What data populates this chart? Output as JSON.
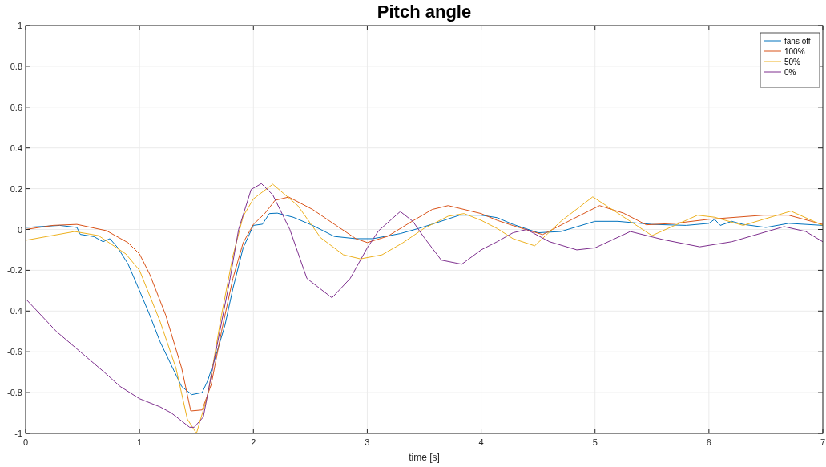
{
  "chart_data": {
    "type": "line",
    "title": "Pitch angle",
    "xlabel": "time [s]",
    "xlim": [
      0,
      7
    ],
    "xticks": [
      0,
      1,
      2,
      3,
      4,
      5,
      6,
      7
    ],
    "ylim": [
      -1,
      1
    ],
    "yticks": [
      -1,
      -0.8,
      -0.6,
      -0.4,
      -0.2,
      0,
      0.2,
      0.4,
      0.6,
      0.8,
      1
    ],
    "grid": true,
    "legend": "top right",
    "marker": "none",
    "line_style": "solid",
    "series": [
      {
        "name": "fans off",
        "color": "#0072bd",
        "x": [
          0,
          0.3,
          0.45,
          0.48,
          0.6,
          0.68,
          0.74,
          0.81,
          0.9,
          1.0,
          1.09,
          1.18,
          1.3,
          1.37,
          1.46,
          1.55,
          1.6,
          1.67,
          1.75,
          1.82,
          1.91,
          2.0,
          2.08,
          2.14,
          2.21,
          2.35,
          2.52,
          2.71,
          2.9,
          3.05,
          3.29,
          3.45,
          3.57,
          3.81,
          4.0,
          4.14,
          4.28,
          4.5,
          4.7,
          5.0,
          5.2,
          5.5,
          5.8,
          6.0,
          6.05,
          6.1,
          6.2,
          6.3,
          6.5,
          6.7,
          7.0
        ],
        "values": [
          0.01,
          0.02,
          0.01,
          -0.024,
          -0.035,
          -0.06,
          -0.045,
          -0.09,
          -0.17,
          -0.3,
          -0.42,
          -0.55,
          -0.69,
          -0.77,
          -0.81,
          -0.8,
          -0.74,
          -0.62,
          -0.47,
          -0.29,
          -0.09,
          0.02,
          0.026,
          0.078,
          0.08,
          0.06,
          0.02,
          -0.034,
          -0.045,
          -0.045,
          -0.02,
          0.005,
          0.026,
          0.07,
          0.07,
          0.058,
          0.025,
          -0.016,
          -0.01,
          0.04,
          0.04,
          0.025,
          0.02,
          0.03,
          0.05,
          0.02,
          0.04,
          0.025,
          0.01,
          0.03,
          0.02
        ]
      },
      {
        "name": "100%",
        "color": "#d95319",
        "x": [
          0,
          0.24,
          0.45,
          0.71,
          0.9,
          1.0,
          1.09,
          1.23,
          1.37,
          1.45,
          1.55,
          1.63,
          1.72,
          1.82,
          1.91,
          2.0,
          2.1,
          2.19,
          2.31,
          2.52,
          2.71,
          2.9,
          3.0,
          3.18,
          3.39,
          3.57,
          3.71,
          4.0,
          4.14,
          4.28,
          4.54,
          4.8,
          5.04,
          5.25,
          5.45,
          5.7,
          6.0,
          6.48,
          6.7,
          7.0
        ],
        "values": [
          0,
          0.02,
          0.025,
          -0.006,
          -0.065,
          -0.12,
          -0.22,
          -0.42,
          -0.68,
          -0.89,
          -0.885,
          -0.76,
          -0.5,
          -0.24,
          -0.065,
          0.025,
          0.078,
          0.143,
          0.159,
          0.098,
          0.026,
          -0.045,
          -0.064,
          -0.033,
          0.039,
          0.098,
          0.117,
          0.078,
          0.045,
          0.019,
          -0.025,
          0.05,
          0.117,
          0.08,
          0.023,
          0.03,
          0.05,
          0.07,
          0.07,
          0.025
        ]
      },
      {
        "name": "50%",
        "color": "#edb120",
        "x": [
          0,
          0.23,
          0.43,
          0.64,
          0.88,
          1.0,
          1.18,
          1.32,
          1.42,
          1.5,
          1.6,
          1.72,
          1.82,
          1.91,
          2.0,
          2.17,
          2.39,
          2.59,
          2.79,
          2.94,
          3.13,
          3.31,
          3.5,
          3.71,
          3.85,
          4.0,
          4.14,
          4.28,
          4.47,
          4.7,
          4.98,
          5.2,
          5.5,
          5.9,
          6.05,
          6.3,
          6.72,
          7.0
        ],
        "values": [
          -0.053,
          -0.03,
          -0.01,
          -0.03,
          -0.12,
          -0.2,
          -0.45,
          -0.68,
          -0.93,
          -1,
          -0.81,
          -0.42,
          -0.13,
          0.065,
          0.15,
          0.222,
          0.117,
          -0.04,
          -0.124,
          -0.144,
          -0.124,
          -0.066,
          0.006,
          0.065,
          0.078,
          0.045,
          0.005,
          -0.045,
          -0.08,
          0.04,
          0.16,
          0.08,
          -0.03,
          0.07,
          0.06,
          0.02,
          0.09,
          0.02
        ]
      },
      {
        "name": "0%",
        "color": "#7e2f8e",
        "x": [
          0,
          0.27,
          0.48,
          0.69,
          0.83,
          1.0,
          1.18,
          1.28,
          1.44,
          1.48,
          1.56,
          1.67,
          1.79,
          1.87,
          1.98,
          2.07,
          2.17,
          2.32,
          2.47,
          2.69,
          2.85,
          3.0,
          3.1,
          3.29,
          3.4,
          3.5,
          3.65,
          3.83,
          4.0,
          4.14,
          4.28,
          4.4,
          4.6,
          4.84,
          5.0,
          5.31,
          5.6,
          5.92,
          6.2,
          6.66,
          6.85,
          7.0
        ],
        "values": [
          -0.34,
          -0.5,
          -0.6,
          -0.7,
          -0.77,
          -0.83,
          -0.87,
          -0.9,
          -0.97,
          -0.97,
          -0.92,
          -0.6,
          -0.256,
          0,
          0.196,
          0.225,
          0.17,
          0,
          -0.24,
          -0.335,
          -0.24,
          -0.09,
          -0.006,
          0.088,
          0.04,
          -0.04,
          -0.15,
          -0.17,
          -0.1,
          -0.06,
          -0.016,
          0,
          -0.06,
          -0.1,
          -0.09,
          -0.01,
          -0.05,
          -0.085,
          -0.06,
          0.014,
          -0.01,
          -0.06
        ]
      }
    ]
  }
}
